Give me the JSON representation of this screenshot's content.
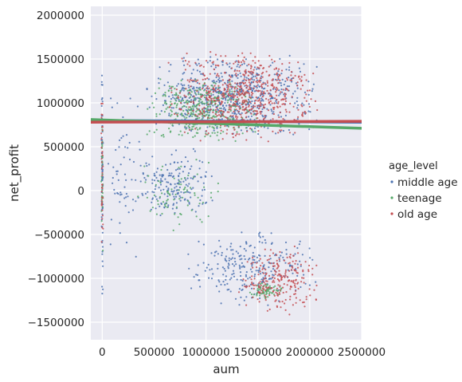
{
  "chart_data": {
    "type": "scatter",
    "title": "",
    "xlabel": "aum",
    "ylabel": "net_profit",
    "xlim": [
      -110000,
      2500000
    ],
    "ylim": [
      -1700000,
      2100000
    ],
    "xticks": [
      "0",
      "500000",
      "1000000",
      "1500000",
      "2000000",
      "2500000"
    ],
    "yticks": [
      "2000000",
      "1500000",
      "1000000",
      "500000",
      "0",
      "−500000",
      "−1000000",
      "−1500000"
    ],
    "grid": true,
    "legend_position": "right",
    "legend_title": "age_level",
    "series": [
      {
        "name": "middle age",
        "color": "#4c72b0",
        "regression_line": {
          "x": [
            -110000,
            2500000
          ],
          "y": [
            800000,
            780000
          ]
        },
        "clusters": [
          {
            "x_range": [
              400000,
              2100000
            ],
            "y_range": [
              600000,
              1550000
            ],
            "n": 700
          },
          {
            "x_range": [
              300000,
              1100000
            ],
            "y_range": [
              -300000,
              500000
            ],
            "n": 180
          },
          {
            "x_range": [
              800000,
              2100000
            ],
            "y_range": [
              -1350000,
              -450000
            ],
            "n": 260
          },
          {
            "x_range": [
              -10000,
              10000
            ],
            "y_range": [
              -1300000,
              1600000
            ],
            "n": 80
          },
          {
            "x_range": [
              20000,
              400000
            ],
            "y_range": [
              -900000,
              1300000
            ],
            "n": 60
          }
        ]
      },
      {
        "name": "teenage",
        "color": "#55a868",
        "regression_line": {
          "x": [
            -110000,
            2500000
          ],
          "y": [
            810000,
            710000
          ]
        },
        "clusters": [
          {
            "x_range": [
              400000,
              1500000
            ],
            "y_range": [
              550000,
              1300000
            ],
            "n": 380
          },
          {
            "x_range": [
              300000,
              1200000
            ],
            "y_range": [
              -500000,
              400000
            ],
            "n": 80
          },
          {
            "x_range": [
              1400000,
              1750000
            ],
            "y_range": [
              -1250000,
              -1050000
            ],
            "n": 70
          },
          {
            "x_range": [
              -10000,
              10000
            ],
            "y_range": [
              -1000000,
              1400000
            ],
            "n": 40
          }
        ]
      },
      {
        "name": "old age",
        "color": "#c44e52",
        "regression_line": {
          "x": [
            -110000,
            2500000
          ],
          "y": [
            780000,
            790000
          ]
        },
        "clusters": [
          {
            "x_range": [
              600000,
              2100000
            ],
            "y_range": [
              550000,
              1600000
            ],
            "n": 620
          },
          {
            "x_range": [
              1300000,
              2100000
            ],
            "y_range": [
              -1450000,
              -600000
            ],
            "n": 230
          },
          {
            "x_range": [
              -10000,
              10000
            ],
            "y_range": [
              -900000,
              1500000
            ],
            "n": 40
          }
        ]
      }
    ]
  }
}
